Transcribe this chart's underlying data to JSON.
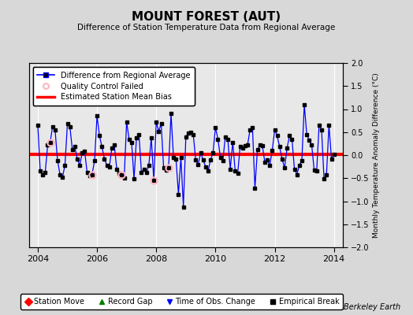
{
  "title": "MOUNT FOREST (AUT)",
  "subtitle": "Difference of Station Temperature Data from Regional Average",
  "ylabel": "Monthly Temperature Anomaly Difference (°C)",
  "xlabel_years": [
    2004,
    2006,
    2008,
    2010,
    2012,
    2014
  ],
  "ylim": [
    -2,
    2
  ],
  "xlim": [
    2003.7,
    2014.3
  ],
  "bias_value": 0.02,
  "background_color": "#d8d8d8",
  "plot_bg_color": "#e8e8e8",
  "grid_color": "white",
  "line_color": "blue",
  "bias_color": "red",
  "marker_color": "black",
  "qc_fail_color": "#ffb6c1",
  "watermark": "Berkeley Earth",
  "monthly_data": [
    [
      2004.0,
      0.65
    ],
    [
      2004.083,
      -0.35
    ],
    [
      2004.167,
      -0.42
    ],
    [
      2004.25,
      -0.38
    ],
    [
      2004.333,
      0.22
    ],
    [
      2004.417,
      0.28
    ],
    [
      2004.5,
      0.62
    ],
    [
      2004.583,
      0.55
    ],
    [
      2004.667,
      -0.12
    ],
    [
      2004.75,
      -0.42
    ],
    [
      2004.833,
      -0.48
    ],
    [
      2004.917,
      -0.22
    ],
    [
      2005.0,
      0.68
    ],
    [
      2005.083,
      0.62
    ],
    [
      2005.167,
      0.12
    ],
    [
      2005.25,
      0.18
    ],
    [
      2005.333,
      -0.08
    ],
    [
      2005.417,
      -0.22
    ],
    [
      2005.5,
      0.05
    ],
    [
      2005.583,
      0.08
    ],
    [
      2005.667,
      -0.38
    ],
    [
      2005.75,
      -0.45
    ],
    [
      2005.833,
      -0.42
    ],
    [
      2005.917,
      -0.12
    ],
    [
      2006.0,
      0.85
    ],
    [
      2006.083,
      0.42
    ],
    [
      2006.167,
      0.18
    ],
    [
      2006.25,
      -0.08
    ],
    [
      2006.333,
      -0.22
    ],
    [
      2006.417,
      -0.25
    ],
    [
      2006.5,
      0.15
    ],
    [
      2006.583,
      0.22
    ],
    [
      2006.667,
      -0.3
    ],
    [
      2006.75,
      -0.4
    ],
    [
      2006.833,
      -0.42
    ],
    [
      2006.917,
      -0.5
    ],
    [
      2007.0,
      0.72
    ],
    [
      2007.083,
      0.35
    ],
    [
      2007.167,
      0.28
    ],
    [
      2007.25,
      -0.52
    ],
    [
      2007.333,
      0.38
    ],
    [
      2007.417,
      0.45
    ],
    [
      2007.5,
      -0.38
    ],
    [
      2007.583,
      -0.3
    ],
    [
      2007.667,
      -0.38
    ],
    [
      2007.75,
      -0.22
    ],
    [
      2007.833,
      0.38
    ],
    [
      2007.917,
      -0.55
    ],
    [
      2008.0,
      0.72
    ],
    [
      2008.083,
      0.52
    ],
    [
      2008.167,
      0.68
    ],
    [
      2008.25,
      -0.28
    ],
    [
      2008.333,
      -0.32
    ],
    [
      2008.417,
      -0.28
    ],
    [
      2008.5,
      0.9
    ],
    [
      2008.583,
      -0.05
    ],
    [
      2008.667,
      -0.08
    ],
    [
      2008.75,
      -0.85
    ],
    [
      2008.833,
      -0.05
    ],
    [
      2008.917,
      -1.12
    ],
    [
      2009.0,
      0.4
    ],
    [
      2009.083,
      0.48
    ],
    [
      2009.167,
      0.5
    ],
    [
      2009.25,
      0.45
    ],
    [
      2009.333,
      -0.1
    ],
    [
      2009.417,
      -0.2
    ],
    [
      2009.5,
      0.05
    ],
    [
      2009.583,
      -0.1
    ],
    [
      2009.667,
      -0.25
    ],
    [
      2009.75,
      -0.35
    ],
    [
      2009.833,
      -0.1
    ],
    [
      2009.917,
      0.05
    ],
    [
      2010.0,
      0.6
    ],
    [
      2010.083,
      0.35
    ],
    [
      2010.167,
      -0.05
    ],
    [
      2010.25,
      -0.12
    ],
    [
      2010.333,
      0.4
    ],
    [
      2010.417,
      0.35
    ],
    [
      2010.5,
      -0.3
    ],
    [
      2010.583,
      0.28
    ],
    [
      2010.667,
      -0.35
    ],
    [
      2010.75,
      -0.4
    ],
    [
      2010.833,
      0.18
    ],
    [
      2010.917,
      0.15
    ],
    [
      2011.0,
      0.2
    ],
    [
      2011.083,
      0.22
    ],
    [
      2011.167,
      0.55
    ],
    [
      2011.25,
      0.6
    ],
    [
      2011.333,
      -0.72
    ],
    [
      2011.417,
      0.12
    ],
    [
      2011.5,
      0.22
    ],
    [
      2011.583,
      0.2
    ],
    [
      2011.667,
      -0.15
    ],
    [
      2011.75,
      -0.1
    ],
    [
      2011.833,
      -0.22
    ],
    [
      2011.917,
      0.1
    ],
    [
      2012.0,
      0.55
    ],
    [
      2012.083,
      0.42
    ],
    [
      2012.167,
      0.18
    ],
    [
      2012.25,
      -0.08
    ],
    [
      2012.333,
      -0.28
    ],
    [
      2012.417,
      0.15
    ],
    [
      2012.5,
      0.42
    ],
    [
      2012.583,
      0.35
    ],
    [
      2012.667,
      -0.3
    ],
    [
      2012.75,
      -0.42
    ],
    [
      2012.833,
      -0.22
    ],
    [
      2012.917,
      -0.12
    ],
    [
      2013.0,
      1.1
    ],
    [
      2013.083,
      0.45
    ],
    [
      2013.167,
      0.32
    ],
    [
      2013.25,
      0.22
    ],
    [
      2013.333,
      -0.32
    ],
    [
      2013.417,
      -0.35
    ],
    [
      2013.5,
      0.65
    ],
    [
      2013.583,
      0.55
    ],
    [
      2013.667,
      -0.52
    ],
    [
      2013.75,
      -0.42
    ],
    [
      2013.833,
      0.65
    ],
    [
      2013.917,
      -0.08
    ],
    [
      2014.0,
      0.02
    ]
  ],
  "qc_fail_points": [
    [
      2004.417,
      0.28
    ],
    [
      2005.833,
      -0.42
    ],
    [
      2006.833,
      -0.42
    ],
    [
      2007.917,
      -0.55
    ],
    [
      2008.417,
      -0.28
    ]
  ]
}
